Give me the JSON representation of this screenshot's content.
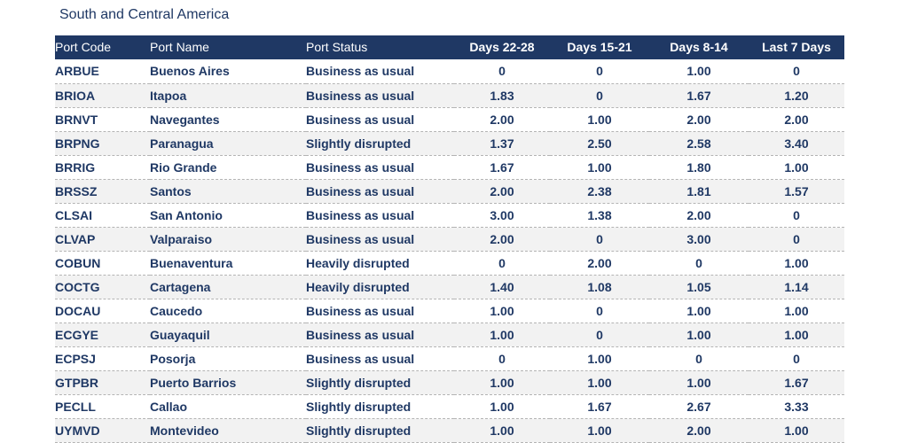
{
  "title": "South and Central America",
  "headers": [
    "Port Code",
    "Port Name",
    "Port Status",
    "Days 22-28",
    "Days 15-21",
    "Days 8-14",
    "Last 7 Days"
  ],
  "rows": [
    [
      "ARBUE",
      "Buenos Aires",
      "Business as usual",
      "0",
      "0",
      "1.00",
      "0"
    ],
    [
      "BRIOA",
      "Itapoa",
      "Business as usual",
      "1.83",
      "0",
      "1.67",
      "1.20"
    ],
    [
      "BRNVT",
      "Navegantes",
      "Business as usual",
      "2.00",
      "1.00",
      "2.00",
      "2.00"
    ],
    [
      "BRPNG",
      "Paranagua",
      "Slightly disrupted",
      "1.37",
      "2.50",
      "2.58",
      "3.40"
    ],
    [
      "BRRIG",
      "Rio Grande",
      "Business as usual",
      "1.67",
      "1.00",
      "1.80",
      "1.00"
    ],
    [
      "BRSSZ",
      "Santos",
      "Business as usual",
      "2.00",
      "2.38",
      "1.81",
      "1.57"
    ],
    [
      "CLSAI",
      "San Antonio",
      "Business as usual",
      "3.00",
      "1.38",
      "2.00",
      "0"
    ],
    [
      "CLVAP",
      "Valparaiso",
      "Business as usual",
      "2.00",
      "0",
      "3.00",
      "0"
    ],
    [
      "COBUN",
      "Buenaventura",
      "Heavily disrupted",
      "0",
      "2.00",
      "0",
      "1.00"
    ],
    [
      "COCTG",
      "Cartagena",
      "Heavily disrupted",
      "1.40",
      "1.08",
      "1.05",
      "1.14"
    ],
    [
      "DOCAU",
      "Caucedo",
      "Business as usual",
      "1.00",
      "0",
      "1.00",
      "1.00"
    ],
    [
      "ECGYE",
      "Guayaquil",
      "Business as usual",
      "1.00",
      "0",
      "1.00",
      "1.00"
    ],
    [
      "ECPSJ",
      "Posorja",
      "Business as usual",
      "0",
      "1.00",
      "0",
      "0"
    ],
    [
      "GTPBR",
      "Puerto Barrios",
      "Slightly disrupted",
      "1.00",
      "1.00",
      "1.00",
      "1.67"
    ],
    [
      "PECLL",
      "Callao",
      "Slightly disrupted",
      "1.00",
      "1.67",
      "2.67",
      "3.33"
    ],
    [
      "UYMVD",
      "Montevideo",
      "Slightly disrupted",
      "1.00",
      "1.00",
      "2.00",
      "1.00"
    ]
  ],
  "colors": {
    "header_bg": "#1f3864",
    "text": "#1f3864",
    "row_alt": "#f2f2f2"
  }
}
